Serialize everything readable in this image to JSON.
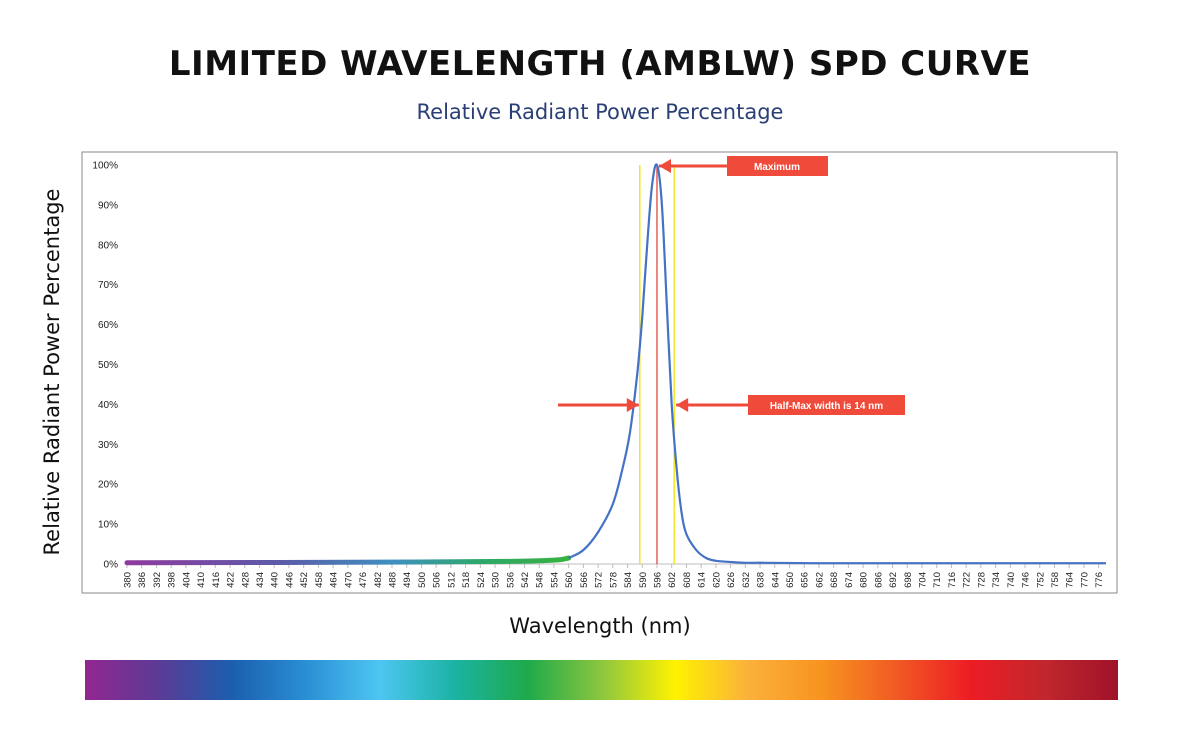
{
  "page": {
    "title": "LIMITED WAVELENGTH (AMBLW) SPD CURVE",
    "subtitle": "Relative Radiant Power Percentage"
  },
  "chart_data": {
    "type": "line",
    "title": "LIMITED WAVELENGTH (AMBLW) SPD CURVE",
    "subtitle": "Relative Radiant Power Percentage",
    "xlabel": "Wavelength (nm)",
    "ylabel": "Relative Radiant Power Percentage",
    "xlim": [
      380,
      779
    ],
    "ylim": [
      0,
      100
    ],
    "yticks": [
      "0%",
      "10%",
      "20%",
      "30%",
      "40%",
      "50%",
      "60%",
      "70%",
      "80%",
      "90%",
      "100%"
    ],
    "xticks": [
      "380",
      "386",
      "392",
      "398",
      "404",
      "410",
      "416",
      "422",
      "428",
      "434",
      "440",
      "446",
      "452",
      "458",
      "464",
      "470",
      "476",
      "482",
      "488",
      "494",
      "500",
      "506",
      "512",
      "518",
      "524",
      "530",
      "536",
      "542",
      "548",
      "554",
      "560",
      "566",
      "572",
      "578",
      "584",
      "590",
      "596",
      "602",
      "608",
      "614",
      "620",
      "626",
      "632",
      "638",
      "644",
      "650",
      "656",
      "662",
      "668",
      "674",
      "680",
      "686",
      "692",
      "698",
      "704",
      "710",
      "716",
      "722",
      "728",
      "734",
      "740",
      "746",
      "752",
      "758",
      "764",
      "770",
      "776"
    ],
    "grid": false,
    "series": [
      {
        "color": "#4472c4",
        "x": [
          380,
          500,
          540,
          555,
          560,
          566,
          572,
          578,
          582,
          585,
          588,
          590,
          592,
          594,
          596,
          598,
          600,
          602,
          604,
          606,
          608,
          612,
          616,
          620,
          626,
          632,
          640,
          660,
          700,
          779
        ],
        "y": [
          0.3,
          0.5,
          0.7,
          1.0,
          1.5,
          3.5,
          8,
          15,
          24,
          33,
          48,
          62,
          80,
          95,
          100,
          90,
          65,
          40,
          24,
          13,
          7.5,
          3.5,
          1.5,
          0.8,
          0.5,
          0.3,
          0.3,
          0.2,
          0.2,
          0.2
        ]
      }
    ],
    "vertical_lines": [
      {
        "x": 589,
        "color": "#f2e200"
      },
      {
        "x": 596,
        "color": "#e0463c"
      },
      {
        "x": 603,
        "color": "#f2e200"
      }
    ],
    "annotations": [
      {
        "text": "Maximum",
        "color": "#ef4a3a"
      },
      {
        "text": "Half-Max width is 14 nm",
        "color": "#ef4a3a"
      }
    ]
  },
  "spectrum_bar": {
    "colors": [
      "#93278f",
      "#5b3a96",
      "#1b5fae",
      "#2a8fd4",
      "#4dc6f2",
      "#1bb3a5",
      "#1eaa4a",
      "#8cc63f",
      "#fff200",
      "#fbb03b",
      "#f7931e",
      "#f15a24",
      "#ed1c24",
      "#c1272d",
      "#a0122a"
    ]
  }
}
